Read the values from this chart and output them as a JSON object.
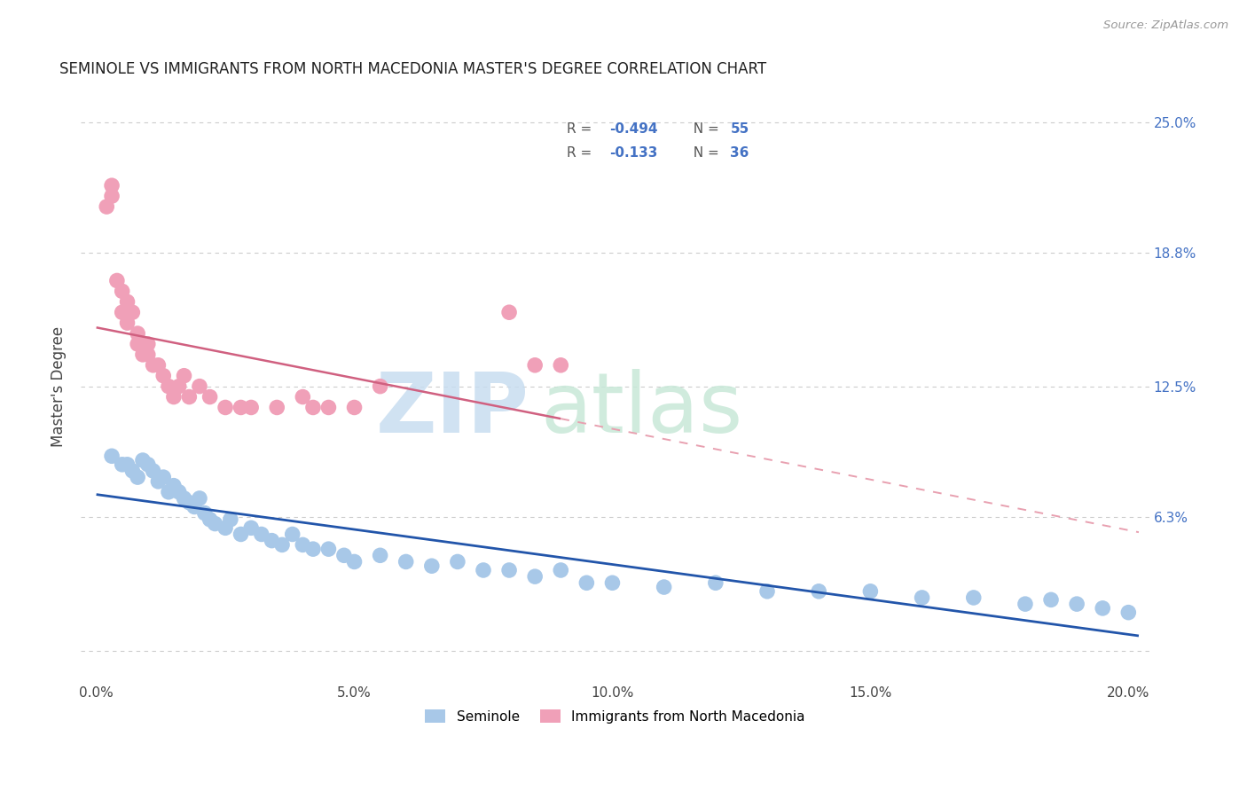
{
  "title": "SEMINOLE VS IMMIGRANTS FROM NORTH MACEDONIA MASTER'S DEGREE CORRELATION CHART",
  "source": "Source: ZipAtlas.com",
  "seminole_color": "#a8c8e8",
  "macedonia_color": "#f0a0b8",
  "trend_seminole_color": "#2255aa",
  "trend_macedonia_solid_color": "#d06080",
  "trend_macedonia_dash_color": "#e8a0b0",
  "watermark_zip_color": "#c8ddf0",
  "watermark_atlas_color": "#c8e8d8",
  "seminole_x": [
    0.003,
    0.005,
    0.006,
    0.007,
    0.008,
    0.009,
    0.01,
    0.011,
    0.012,
    0.013,
    0.014,
    0.015,
    0.016,
    0.017,
    0.018,
    0.019,
    0.02,
    0.021,
    0.022,
    0.023,
    0.025,
    0.026,
    0.028,
    0.03,
    0.032,
    0.034,
    0.036,
    0.038,
    0.04,
    0.042,
    0.045,
    0.048,
    0.05,
    0.055,
    0.06,
    0.065,
    0.07,
    0.075,
    0.08,
    0.085,
    0.09,
    0.095,
    0.1,
    0.11,
    0.12,
    0.13,
    0.14,
    0.15,
    0.16,
    0.17,
    0.18,
    0.185,
    0.19,
    0.195,
    0.2
  ],
  "seminole_y": [
    0.092,
    0.088,
    0.088,
    0.085,
    0.082,
    0.09,
    0.088,
    0.085,
    0.08,
    0.082,
    0.075,
    0.078,
    0.075,
    0.072,
    0.07,
    0.068,
    0.072,
    0.065,
    0.062,
    0.06,
    0.058,
    0.062,
    0.055,
    0.058,
    0.055,
    0.052,
    0.05,
    0.055,
    0.05,
    0.048,
    0.048,
    0.045,
    0.042,
    0.045,
    0.042,
    0.04,
    0.042,
    0.038,
    0.038,
    0.035,
    0.038,
    0.032,
    0.032,
    0.03,
    0.032,
    0.028,
    0.028,
    0.028,
    0.025,
    0.025,
    0.022,
    0.024,
    0.022,
    0.02,
    0.018
  ],
  "macedonia_x": [
    0.002,
    0.003,
    0.003,
    0.004,
    0.005,
    0.005,
    0.006,
    0.006,
    0.007,
    0.008,
    0.008,
    0.009,
    0.01,
    0.01,
    0.011,
    0.012,
    0.013,
    0.014,
    0.015,
    0.016,
    0.017,
    0.018,
    0.02,
    0.022,
    0.025,
    0.028,
    0.03,
    0.035,
    0.04,
    0.042,
    0.045,
    0.05,
    0.055,
    0.08,
    0.085,
    0.09
  ],
  "macedonia_y": [
    0.21,
    0.215,
    0.22,
    0.175,
    0.17,
    0.16,
    0.165,
    0.155,
    0.16,
    0.15,
    0.145,
    0.14,
    0.145,
    0.14,
    0.135,
    0.135,
    0.13,
    0.125,
    0.12,
    0.125,
    0.13,
    0.12,
    0.125,
    0.12,
    0.115,
    0.115,
    0.115,
    0.115,
    0.12,
    0.115,
    0.115,
    0.115,
    0.125,
    0.16,
    0.135,
    0.135
  ],
  "xlim": [
    0.0,
    0.202
  ],
  "ylim": [
    -0.015,
    0.265
  ],
  "x_ticks": [
    0.0,
    0.05,
    0.1,
    0.15,
    0.2
  ],
  "x_ticklabels": [
    "0.0%",
    "5.0%",
    "10.0%",
    "15.0%",
    "20.0%"
  ],
  "y_ticks": [
    0.0,
    0.063,
    0.125,
    0.188,
    0.25
  ],
  "y_ticklabels_right": [
    "",
    "6.3%",
    "12.5%",
    "18.8%",
    "25.0%"
  ]
}
